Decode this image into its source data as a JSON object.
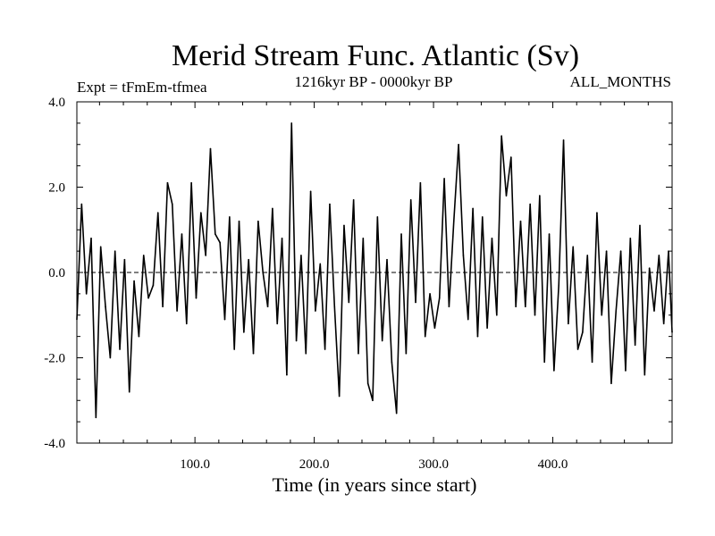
{
  "chart_data": {
    "type": "line",
    "title": "Merid Stream Func. Atlantic (Sv)",
    "subtitle_left": "Expt = tFmEm-tfmea",
    "subtitle_center": "1216kyr BP - 0000kyr BP",
    "subtitle_right": "ALL_MONTHS",
    "xlabel": "Time (in years since start)",
    "ylabel": "",
    "xlim": [
      1,
      500
    ],
    "ylim": [
      -4.0,
      4.0
    ],
    "xticks": [
      100,
      200,
      300,
      400
    ],
    "xtick_labels": [
      "100.0",
      "200.0",
      "300.0",
      "400.0"
    ],
    "yticks": [
      -4.0,
      -2.0,
      0.0,
      2.0,
      4.0
    ],
    "ytick_labels": [
      "-4.0",
      "-2.0",
      "0.0",
      "2.0",
      "4.0"
    ],
    "zero_line": true,
    "grid": false,
    "series": [
      {
        "name": "Merid Stream Func. Atlantic",
        "x": [
          1,
          5,
          9,
          13,
          17,
          21,
          25,
          29,
          33,
          37,
          41,
          45,
          49,
          53,
          57,
          61,
          65,
          69,
          73,
          77,
          81,
          85,
          89,
          93,
          97,
          101,
          105,
          109,
          113,
          117,
          121,
          125,
          129,
          133,
          137,
          141,
          145,
          149,
          153,
          157,
          161,
          165,
          169,
          173,
          177,
          181,
          185,
          189,
          193,
          197,
          201,
          205,
          209,
          213,
          217,
          221,
          225,
          229,
          233,
          237,
          241,
          245,
          249,
          253,
          257,
          261,
          265,
          269,
          273,
          277,
          281,
          285,
          289,
          293,
          297,
          301,
          305,
          309,
          313,
          317,
          321,
          325,
          329,
          333,
          337,
          341,
          345,
          349,
          353,
          357,
          361,
          365,
          369,
          373,
          377,
          381,
          385,
          389,
          393,
          397,
          401,
          405,
          409,
          413,
          417,
          421,
          425,
          429,
          433,
          437,
          441,
          445,
          449,
          453,
          457,
          461,
          465,
          469,
          473,
          477,
          481,
          485,
          489,
          493,
          497,
          500
        ],
        "values": [
          -1.1,
          1.6,
          -0.5,
          0.8,
          -3.4,
          0.6,
          -0.8,
          -2.0,
          0.5,
          -1.8,
          0.3,
          -2.8,
          -0.2,
          -1.5,
          0.4,
          -0.6,
          -0.3,
          1.4,
          -0.8,
          2.1,
          1.6,
          -0.9,
          0.9,
          -1.2,
          2.1,
          -0.6,
          1.4,
          0.4,
          2.9,
          0.9,
          0.7,
          -1.1,
          1.3,
          -1.8,
          1.2,
          -1.4,
          0.3,
          -1.9,
          1.2,
          0.0,
          -0.8,
          1.5,
          -1.2,
          0.8,
          -2.4,
          3.5,
          -1.6,
          0.4,
          -1.9,
          1.9,
          -0.9,
          0.2,
          -1.8,
          1.6,
          -0.8,
          -2.9,
          1.1,
          -0.7,
          1.7,
          -1.9,
          0.8,
          -2.6,
          -3.0,
          1.3,
          -1.6,
          0.3,
          -2.1,
          -3.3,
          0.9,
          -1.9,
          1.7,
          -0.7,
          2.1,
          -1.5,
          -0.5,
          -1.3,
          -0.6,
          2.2,
          -0.8,
          1.2,
          3.0,
          0.4,
          -1.1,
          1.5,
          -1.5,
          1.3,
          -1.3,
          0.8,
          -1.0,
          3.2,
          1.8,
          2.7,
          -0.8,
          1.2,
          -0.8,
          1.6,
          -1.0,
          1.8,
          -2.1,
          0.9,
          -2.3,
          -0.3,
          3.1,
          -1.2,
          0.6,
          -1.8,
          -1.4,
          0.4,
          -2.1,
          1.4,
          -1.0,
          0.5,
          -2.6,
          -0.9,
          0.5,
          -2.3,
          0.8,
          -1.7,
          1.1,
          -2.4,
          0.1,
          -0.9,
          0.4,
          -1.2,
          0.5,
          -1.4
        ]
      }
    ]
  }
}
